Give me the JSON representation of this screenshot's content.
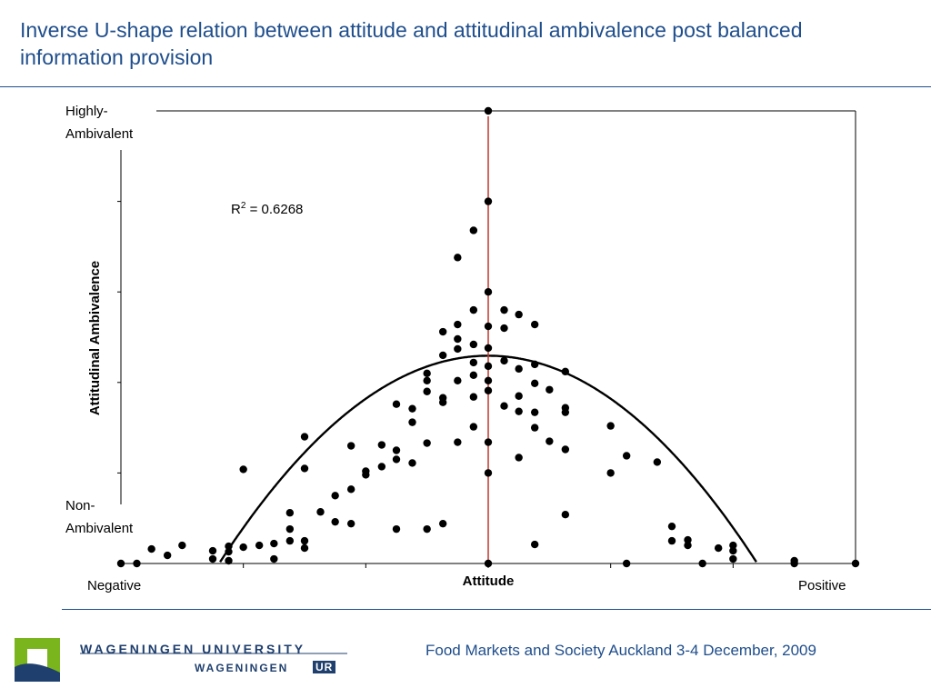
{
  "slide": {
    "title": "Inverse U-shape relation between attitude and attitudinal ambivalence post balanced information provision",
    "footer": "Food Markets and Society Auckland 3-4 December, 2009",
    "logo": {
      "line1": "WAGENINGEN UNIVERSITY",
      "line2": "WAGENINGEN",
      "badge": "UR",
      "colors": {
        "green": "#7ab51d",
        "blue": "#1f3f6e"
      }
    }
  },
  "chart_data": {
    "type": "scatter",
    "title": "",
    "xlabel": "Attitude",
    "ylabel": "Attitudinal Ambivalence",
    "x_tick_labels": {
      "min": "Negative",
      "max": "Positive"
    },
    "y_tick_labels": {
      "min": "Non-\nAmbivalent",
      "max": "Highly-\nAmbivalent"
    },
    "xlim": [
      0,
      6
    ],
    "ylim": [
      0,
      5
    ],
    "grid": false,
    "annotation": {
      "r2_prefix": "R",
      "r2_exp": "2",
      "r2_rest": " = 0.6268"
    },
    "vertical_reference_line": {
      "x": 3.0,
      "color": "#c0392b"
    },
    "trendline": {
      "type": "quadratic",
      "a": -0.475,
      "b": 2.85,
      "c": -1.98,
      "color": "#000000"
    },
    "points": [
      [
        0.0,
        0
      ],
      [
        0.13,
        0
      ],
      [
        0.25,
        0.16
      ],
      [
        0.38,
        0.09
      ],
      [
        0.5,
        0.2
      ],
      [
        0.75,
        0.05
      ],
      [
        0.75,
        0.14
      ],
      [
        0.88,
        0.03
      ],
      [
        0.88,
        0.19
      ],
      [
        0.88,
        0.13
      ],
      [
        1.0,
        0.18
      ],
      [
        1.0,
        1.04
      ],
      [
        1.13,
        0.2
      ],
      [
        1.25,
        0.05
      ],
      [
        1.25,
        0.22
      ],
      [
        1.38,
        0.25
      ],
      [
        1.38,
        0.38
      ],
      [
        1.38,
        0.56
      ],
      [
        1.5,
        0.17
      ],
      [
        1.5,
        0.25
      ],
      [
        1.5,
        1.05
      ],
      [
        1.5,
        1.4
      ],
      [
        1.63,
        0.57
      ],
      [
        1.75,
        0.46
      ],
      [
        1.75,
        0.75
      ],
      [
        1.88,
        0.44
      ],
      [
        1.88,
        0.82
      ],
      [
        1.88,
        1.3
      ],
      [
        2.0,
        1.02
      ],
      [
        2.0,
        0.98
      ],
      [
        2.13,
        1.07
      ],
      [
        2.13,
        1.31
      ],
      [
        2.25,
        0.38
      ],
      [
        2.25,
        1.15
      ],
      [
        2.25,
        1.25
      ],
      [
        2.25,
        1.76
      ],
      [
        2.38,
        1.11
      ],
      [
        2.38,
        1.56
      ],
      [
        2.38,
        1.71
      ],
      [
        2.5,
        0.38
      ],
      [
        2.5,
        1.33
      ],
      [
        2.5,
        1.9
      ],
      [
        2.5,
        2.02
      ],
      [
        2.5,
        2.1
      ],
      [
        2.63,
        0.44
      ],
      [
        2.63,
        1.78
      ],
      [
        2.63,
        1.83
      ],
      [
        2.63,
        2.3
      ],
      [
        2.63,
        2.56
      ],
      [
        2.75,
        1.34
      ],
      [
        2.75,
        2.02
      ],
      [
        2.75,
        2.37
      ],
      [
        2.75,
        2.48
      ],
      [
        2.75,
        2.64
      ],
      [
        2.75,
        3.38
      ],
      [
        2.88,
        1.51
      ],
      [
        2.88,
        1.84
      ],
      [
        2.88,
        2.08
      ],
      [
        2.88,
        2.22
      ],
      [
        2.88,
        2.42
      ],
      [
        2.88,
        2.8
      ],
      [
        2.88,
        3.68
      ],
      [
        3.0,
        0
      ],
      [
        3.0,
        1.0
      ],
      [
        3.0,
        1.34
      ],
      [
        3.0,
        1.91
      ],
      [
        3.0,
        2.02
      ],
      [
        3.0,
        2.18
      ],
      [
        3.0,
        2.38
      ],
      [
        3.0,
        2.62
      ],
      [
        3.0,
        3.0
      ],
      [
        3.0,
        4.0
      ],
      [
        3.0,
        5.0
      ],
      [
        3.13,
        1.74
      ],
      [
        3.13,
        2.24
      ],
      [
        3.13,
        2.6
      ],
      [
        3.13,
        2.8
      ],
      [
        3.25,
        1.17
      ],
      [
        3.25,
        1.68
      ],
      [
        3.25,
        1.85
      ],
      [
        3.25,
        2.15
      ],
      [
        3.25,
        2.75
      ],
      [
        3.38,
        0.21
      ],
      [
        3.38,
        1.5
      ],
      [
        3.38,
        1.67
      ],
      [
        3.38,
        1.99
      ],
      [
        3.38,
        2.2
      ],
      [
        3.38,
        2.64
      ],
      [
        3.5,
        1.35
      ],
      [
        3.5,
        1.92
      ],
      [
        3.63,
        0.54
      ],
      [
        3.63,
        1.26
      ],
      [
        3.63,
        1.67
      ],
      [
        3.63,
        1.72
      ],
      [
        3.63,
        2.12
      ],
      [
        4.0,
        1.0
      ],
      [
        4.0,
        1.52
      ],
      [
        4.13,
        0
      ],
      [
        4.13,
        1.19
      ],
      [
        4.38,
        1.12
      ],
      [
        4.5,
        0.25
      ],
      [
        4.5,
        0.41
      ],
      [
        4.63,
        0.2
      ],
      [
        4.63,
        0.26
      ],
      [
        4.75,
        0
      ],
      [
        4.88,
        0.17
      ],
      [
        5.0,
        0.05
      ],
      [
        5.0,
        0.14
      ],
      [
        5.0,
        0.2
      ],
      [
        5.5,
        0
      ],
      [
        5.5,
        0.03
      ],
      [
        6.0,
        0
      ]
    ]
  }
}
